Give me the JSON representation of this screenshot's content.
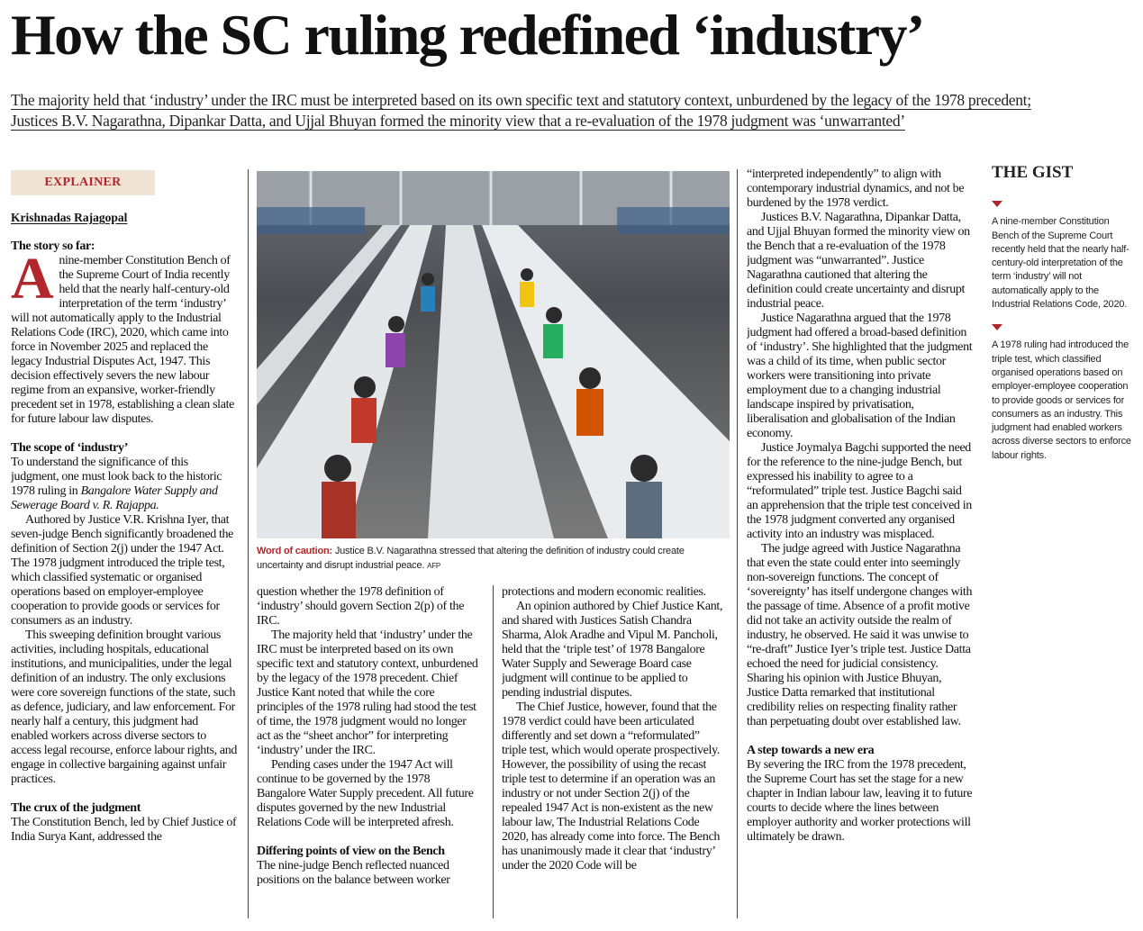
{
  "headline": "How the SC ruling redefined ‘industry’",
  "standfirst": "The majority held that ‘industry’ under the IRC must be interpreted based on its own specific text and statutory context, unburdened by the legacy of the 1978 precedent; Justices B.V. Nagarathna, Dipankar Datta, and Ujjal Bhuyan formed the minority view that a re-evaluation of the 1978 judgment was ‘unwarranted’",
  "label": "EXPLAINER",
  "byline": "Krishnadas Rajagopal",
  "image": {
    "caption_lead": "Word of caution:",
    "caption": "Justice B.V. Nagarathna stressed that altering the definition of industry could create uncertainty and disrupt industrial peace.",
    "credit": "AFP"
  },
  "columns": [
    [
      {
        "type": "heading",
        "text": "The story so far:"
      },
      {
        "type": "para",
        "dropcap": "A",
        "text": "nine-member Constitution Bench of the Supreme Court of India recently held that the nearly half-century-old interpretation of the term ‘industry’ will not automatically apply to the Industrial Relations Code (IRC), 2020, which came into force in November 2025 and replaced the legacy Industrial Disputes Act, 1947. This decision effectively severs the new labour regime from an expansive, worker-friendly precedent set in 1978, establishing a clean slate for future labour law disputes."
      },
      {
        "type": "heading",
        "text": "The scope of ‘industry’"
      },
      {
        "type": "para",
        "text": "To understand the significance of this judgment, one must look back to the historic 1978 ruling in",
        "italic_text": "Bangalore Water Supply and Sewerage Board v. R. Rajappa."
      },
      {
        "type": "para",
        "indent": true,
        "text": "Authored by Justice V.R. Krishna Iyer, that seven-judge Bench significantly broadened the definition of Section 2(j) under the 1947 Act. The 1978 judgment introduced the triple test, which classified systematic or organised operations based on employer-employee cooperation to provide goods or services for consumers as an industry."
      },
      {
        "type": "para",
        "indent": true,
        "text": "This sweeping definition brought various activities, including hospitals, educational institutions, and municipalities, under the legal definition of an industry. The only exclusions were core sovereign functions of the state, such as defence, judiciary, and law enforcement. For nearly half a century, this judgment had enabled workers across diverse sectors to access legal recourse, enforce labour rights, and engage in collective bargaining against unfair practices."
      },
      {
        "type": "heading",
        "text": "The crux of the judgment"
      },
      {
        "type": "para",
        "text": "The Constitution Bench, led by Chief Justice of India Surya Kant, addressed the"
      }
    ],
    [
      {
        "type": "para",
        "text": "question whether the 1978 definition of ‘industry’ should govern Section 2(p) of the IRC."
      },
      {
        "type": "para",
        "indent": true,
        "text": "The majority held that ‘industry’ under the IRC must be interpreted based on its own specific text and statutory context, unburdened by the legacy of the 1978 precedent. Chief Justice Kant noted that while the core principles of the 1978 ruling had stood the test of time, the 1978 judgment would no longer act as the “sheet anchor” for interpreting ‘industry’ under the IRC."
      },
      {
        "type": "para",
        "indent": true,
        "text": "Pending cases under the 1947 Act will continue to be governed by the 1978 Bangalore Water Supply precedent. All future disputes governed by the new Industrial Relations Code will be interpreted afresh."
      },
      {
        "type": "heading",
        "text": "Differing points of view on the Bench"
      },
      {
        "type": "para",
        "text": "The nine-judge Bench reflected nuanced positions on the balance between worker"
      }
    ],
    [
      {
        "type": "para",
        "text": "protections and modern economic realities."
      },
      {
        "type": "para",
        "indent": true,
        "text": "An opinion authored by Chief Justice Kant, and shared with Justices Satish Chandra Sharma, Alok Aradhe and Vipul M. Pancholi, held that the ‘triple test’ of 1978 Bangalore Water Supply and Sewerage Board case judgment will continue to be applied to pending industrial disputes."
      },
      {
        "type": "para",
        "indent": true,
        "text": "The Chief Justice, however, found that the 1978 verdict could have been articulated differently and set down a “reformulated” triple test, which would operate prospectively. However, the possibility of using the recast triple test to determine if an operation was an industry or not under Section 2(j) of the repealed 1947 Act is non-existent as the new labour law, The Industrial Relations Code 2020, has already come into force. The Bench has unanimously made it clear that ‘industry’ under the 2020 Code will be"
      }
    ],
    [
      {
        "type": "para",
        "text": "“interpreted independently” to align with contemporary industrial dynamics, and not be burdened by the 1978 verdict."
      },
      {
        "type": "para",
        "indent": true,
        "text": "Justices B.V. Nagarathna, Dipankar Datta, and Ujjal Bhuyan formed the minority view on the Bench that a re-evaluation of the 1978 judgment was “unwarranted”. Justice Nagarathna cautioned that altering the definition could create uncertainty and disrupt industrial peace."
      },
      {
        "type": "para",
        "indent": true,
        "text": "Justice Nagarathna argued that the 1978 judgment had offered a broad-based definition of ‘industry’. She highlighted that the judgment was a child of its time, when public sector workers were transitioning into private employment due to a changing industrial landscape inspired by privatisation, liberalisation and globalisation of the Indian economy."
      },
      {
        "type": "para",
        "indent": true,
        "text": "Justice Joymalya Bagchi supported the need for the reference to the nine-judge Bench, but expressed his inability to agree to a “reformulated” triple test. Justice Bagchi said an apprehension that the triple test conceived in the 1978 judgment converted any organised activity into an industry was misplaced."
      },
      {
        "type": "para",
        "indent": true,
        "text": "The judge agreed with Justice Nagarathna that even the state could enter into seemingly non-sovereign functions. The concept of ‘sovereignty’ has itself undergone changes with the passage of time. Absence of a profit motive did not take an activity outside the realm of industry, he observed. He said it was unwise to “re-draft” Justice Iyer’s triple test. Justice Datta echoed the need for judicial consistency. Sharing his opinion with Justice Bhuyan, Justice Datta remarked that institutional credibility relies on respecting finality rather than perpetuating doubt over established law."
      },
      {
        "type": "heading",
        "text": "A step towards a new era"
      },
      {
        "type": "para",
        "text": "By severing the IRC from the 1978 precedent, the Supreme Court has set the stage for a new chapter in Indian labour law, leaving it to future courts to decide where the lines between employer authority and worker protections will ultimately be drawn."
      }
    ]
  ],
  "gist": {
    "title": "THE GIST",
    "points": [
      "A nine-member Constitution Bench of the Supreme Court recently held that the nearly half-century-old interpretation of the term ‘industry’ will not automatically apply to the Industrial Relations Code, 2020.",
      "A 1978 ruling had introduced the triple test, which classified organised operations based on employer-employee cooperation to provide goods or services for consumers as an industry. This judgment had enabled workers across diverse sectors to enforce labour rights."
    ]
  }
}
